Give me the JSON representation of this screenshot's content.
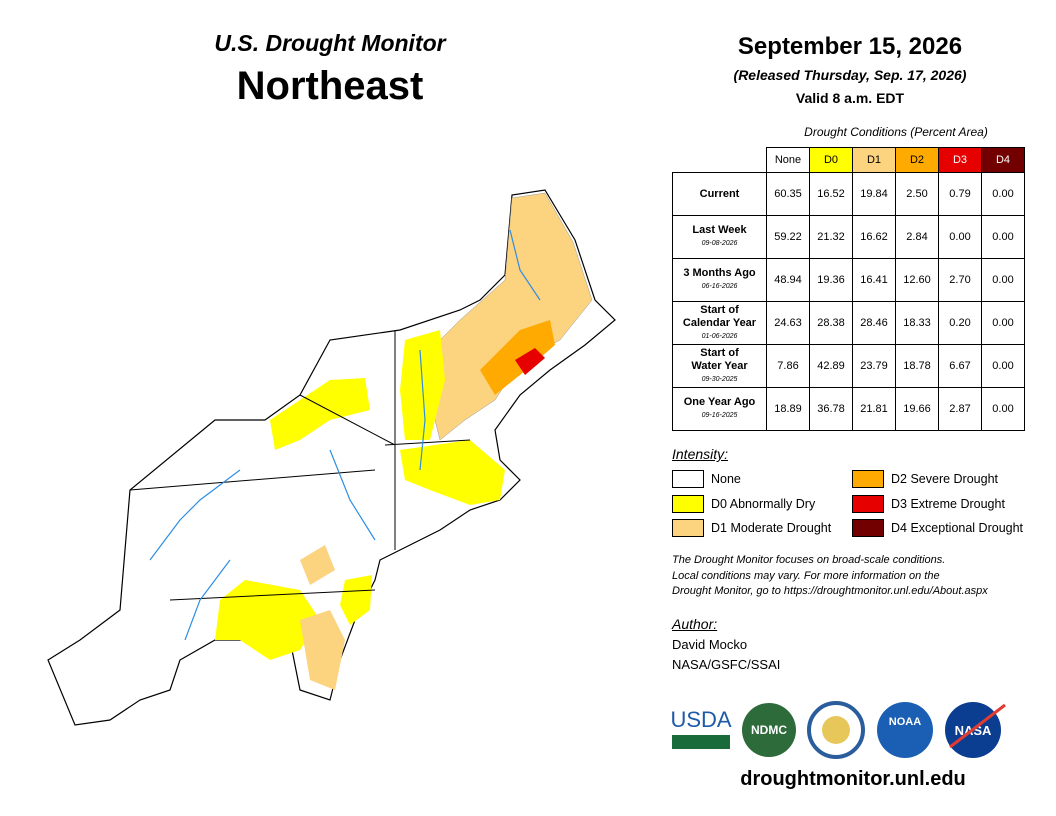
{
  "header": {
    "subtitle": "U.S. Drought Monitor",
    "title": "Northeast"
  },
  "date": {
    "title": "September 15, 2026",
    "released": "(Released Thursday, Sep. 17, 2026)",
    "valid": "Valid 8 a.m. EDT"
  },
  "table": {
    "caption": "Drought Conditions (Percent Area)",
    "columns": [
      {
        "label": "None",
        "color": "#ffffff",
        "text_color": "#000000"
      },
      {
        "label": "D0",
        "color": "#ffff00",
        "text_color": "#000000"
      },
      {
        "label": "D1",
        "color": "#fcd37f",
        "text_color": "#000000"
      },
      {
        "label": "D2",
        "color": "#ffaa00",
        "text_color": "#000000"
      },
      {
        "label": "D3",
        "color": "#e60000",
        "text_color": "#ffffff"
      },
      {
        "label": "D4",
        "color": "#730000",
        "text_color": "#ffffff"
      }
    ],
    "rows": [
      {
        "label": [
          "Current"
        ],
        "values": [
          "60.35",
          "16.52",
          "19.84",
          "2.50",
          "0.79",
          "0.00"
        ]
      },
      {
        "label": [
          "Last Week"
        ],
        "date": "09-08-2026",
        "values": [
          "59.22",
          "21.32",
          "16.62",
          "2.84",
          "0.00",
          "0.00"
        ]
      },
      {
        "label": [
          "3 Months Ago"
        ],
        "date": "06-16-2026",
        "values": [
          "48.94",
          "19.36",
          "16.41",
          "12.60",
          "2.70",
          "0.00"
        ]
      },
      {
        "label": [
          "Start of",
          "Calendar Year"
        ],
        "date": "01-06-2026",
        "values": [
          "24.63",
          "28.38",
          "28.46",
          "18.33",
          "0.20",
          "0.00"
        ]
      },
      {
        "label": [
          "Start of",
          "Water Year"
        ],
        "date": "09-30-2025",
        "values": [
          "7.86",
          "42.89",
          "23.79",
          "18.78",
          "6.67",
          "0.00"
        ]
      },
      {
        "label": [
          "One Year Ago"
        ],
        "date": "09-16-2025",
        "values": [
          "18.89",
          "36.78",
          "21.81",
          "19.66",
          "2.87",
          "0.00"
        ]
      }
    ]
  },
  "legend": {
    "title": "Intensity:",
    "items": [
      {
        "label": "None",
        "color": "#ffffff"
      },
      {
        "label": "D0 Abnormally Dry",
        "color": "#ffff00"
      },
      {
        "label": "D1 Moderate Drought",
        "color": "#fcd37f"
      },
      {
        "label": "D2 Severe Drought",
        "color": "#ffaa00"
      },
      {
        "label": "D3 Extreme Drought",
        "color": "#e60000"
      },
      {
        "label": "D4 Exceptional Drought",
        "color": "#730000"
      }
    ]
  },
  "note": [
    "The Drought Monitor focuses on broad-scale conditions.",
    "Local conditions may vary. For more information on the",
    "Drought Monitor, go to https://droughtmonitor.unl.edu/About.aspx"
  ],
  "author": {
    "title": "Author:",
    "name": "David Mocko",
    "affiliation": "NASA/GSFC/SSAI"
  },
  "logos": [
    "USDA",
    "NDMC",
    "NOAA",
    "NASA"
  ],
  "url": "droughtmonitor.unl.edu"
}
